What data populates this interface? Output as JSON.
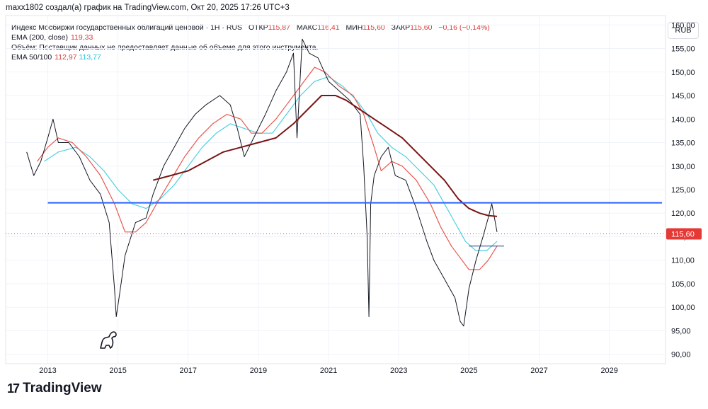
{
  "caption": "maxx1802 создал(а) график на TradingView.com, Окт 20, 2025 17:26 UTC+3",
  "legend": {
    "title": "Индекс Мосбиржи государственных облигаций ценовой · 1H · RUS",
    "open_label": "ОТКР",
    "open_value": "115,87",
    "high_label": "МАКС",
    "high_value": "116,41",
    "low_label": "МИН",
    "low_value": "115,60",
    "close_label": "ЗАКР",
    "close_value": "115,60",
    "change": "−0,16 (−0,14%)",
    "ema200_label": "EMA (200, close)",
    "ema200_value": "119,33",
    "volume_note": "Объём: Поставщик данных не предоставляет данные об объеме для этого инструмента.",
    "ema_pair_label": "EMA 50/100",
    "ema50_value": "112,97",
    "ema100_value": "113,77"
  },
  "currency": "RUB",
  "brand": "TradingView",
  "last_price_label": "115,60",
  "colors": {
    "price": "#131722",
    "ema50": "#e8574e",
    "ema100": "#4dd0e1",
    "ema200": "#7a1414",
    "level": "#2962ff",
    "last": "#e53935"
  },
  "chart_data": {
    "type": "line",
    "title": "Индекс Мосбиржи государственных облигаций ценовой",
    "x_ticks": [
      2013,
      2015,
      2017,
      2019,
      2021,
      2023,
      2025,
      2027,
      2029
    ],
    "y_ticks": [
      "160,00",
      "155,00",
      "150,00",
      "145,00",
      "140,00",
      "135,00",
      "130,00",
      "125,00",
      "120,00",
      "115,00",
      "110,00",
      "105,00",
      "100,00",
      "95,00",
      "90,00"
    ],
    "xlim": [
      2011.8,
      2030.6
    ],
    "ylim": [
      88,
      162
    ],
    "horizontal_level": {
      "y": 122.2,
      "x_start": 2013.0,
      "x_end": 2030.5
    },
    "short_level": {
      "y": 113.0,
      "x_start": 2025.0,
      "x_end": 2026.0
    },
    "last_price": 115.6,
    "series": [
      {
        "name": "price",
        "x": [
          2012.4,
          2012.6,
          2012.8,
          2013.0,
          2013.15,
          2013.3,
          2013.6,
          2013.9,
          2014.2,
          2014.5,
          2014.75,
          2014.9,
          2014.95,
          2015.05,
          2015.2,
          2015.5,
          2015.8,
          2016.0,
          2016.3,
          2016.6,
          2016.9,
          2017.2,
          2017.5,
          2017.9,
          2018.2,
          2018.4,
          2018.6,
          2018.8,
          2019.0,
          2019.2,
          2019.5,
          2019.8,
          2020.0,
          2020.1,
          2020.25,
          2020.45,
          2020.7,
          2021.0,
          2021.3,
          2021.6,
          2021.9,
          2022.0,
          2022.1,
          2022.15,
          2022.2,
          2022.3,
          2022.5,
          2022.7,
          2022.9,
          2023.2,
          2023.5,
          2023.8,
          2024.0,
          2024.3,
          2024.6,
          2024.75,
          2024.85,
          2025.0,
          2025.2,
          2025.4,
          2025.55,
          2025.65,
          2025.75,
          2025.8
        ],
        "values": [
          133,
          128,
          131,
          136,
          140,
          135,
          135,
          132,
          127,
          124,
          118,
          104,
          98,
          103,
          111,
          118,
          119,
          124,
          130,
          134,
          138,
          141,
          143,
          145,
          143,
          138,
          132,
          135,
          138,
          141,
          146,
          150,
          154,
          136,
          157,
          154,
          153,
          148,
          146,
          144,
          141,
          130,
          115,
          98,
          122,
          128,
          132,
          134,
          128,
          127,
          121,
          114,
          110,
          106,
          102,
          97,
          96,
          104,
          110,
          115,
          119,
          122,
          118,
          116
        ]
      },
      {
        "name": "EMA 50",
        "x": [
          2012.7,
          2013.0,
          2013.3,
          2013.7,
          2014.1,
          2014.5,
          2014.9,
          2015.2,
          2015.5,
          2015.8,
          2016.1,
          2016.5,
          2016.9,
          2017.3,
          2017.7,
          2018.1,
          2018.5,
          2018.8,
          2019.1,
          2019.5,
          2019.9,
          2020.3,
          2020.6,
          2020.9,
          2021.3,
          2021.7,
          2022.0,
          2022.3,
          2022.5,
          2022.8,
          2023.1,
          2023.5,
          2023.9,
          2024.2,
          2024.5,
          2024.8,
          2025.0,
          2025.3,
          2025.55,
          2025.8
        ],
        "values": [
          131,
          134,
          136,
          135,
          132,
          128,
          122,
          116,
          116,
          118,
          122,
          127,
          132,
          136,
          139,
          141,
          140,
          137,
          137,
          140,
          144,
          148,
          151,
          150,
          147,
          145,
          141,
          134,
          129,
          131,
          130,
          127,
          122,
          117,
          113,
          110,
          108,
          108,
          110,
          113
        ]
      },
      {
        "name": "EMA 100",
        "x": [
          2012.9,
          2013.3,
          2013.8,
          2014.2,
          2014.6,
          2015.0,
          2015.4,
          2015.8,
          2016.2,
          2016.6,
          2017.0,
          2017.4,
          2017.8,
          2018.2,
          2018.6,
          2019.0,
          2019.4,
          2019.8,
          2020.2,
          2020.6,
          2021.0,
          2021.4,
          2021.8,
          2022.1,
          2022.4,
          2022.8,
          2023.2,
          2023.6,
          2024.0,
          2024.3,
          2024.6,
          2024.9,
          2025.2,
          2025.5,
          2025.8
        ],
        "values": [
          131,
          133,
          134,
          132,
          129,
          125,
          122,
          121,
          123,
          126,
          130,
          134,
          137,
          139,
          138,
          137,
          137,
          141,
          145,
          148,
          149,
          147,
          144,
          141,
          137,
          134,
          132,
          129,
          126,
          122,
          118,
          114,
          112,
          112,
          114
        ]
      },
      {
        "name": "EMA 200",
        "x": [
          2016.0,
          2016.5,
          2017.0,
          2017.5,
          2018.0,
          2018.5,
          2019.0,
          2019.5,
          2020.0,
          2020.4,
          2020.8,
          2021.2,
          2021.5,
          2021.9,
          2022.3,
          2022.7,
          2023.1,
          2023.5,
          2023.9,
          2024.3,
          2024.7,
          2025.0,
          2025.3,
          2025.55,
          2025.8
        ],
        "values": [
          127,
          128,
          129,
          131,
          133,
          134,
          135,
          136,
          139,
          142,
          145,
          145,
          144,
          142,
          140,
          138,
          136,
          133,
          130,
          127,
          123,
          121,
          120,
          119.5,
          119.3
        ]
      }
    ]
  }
}
